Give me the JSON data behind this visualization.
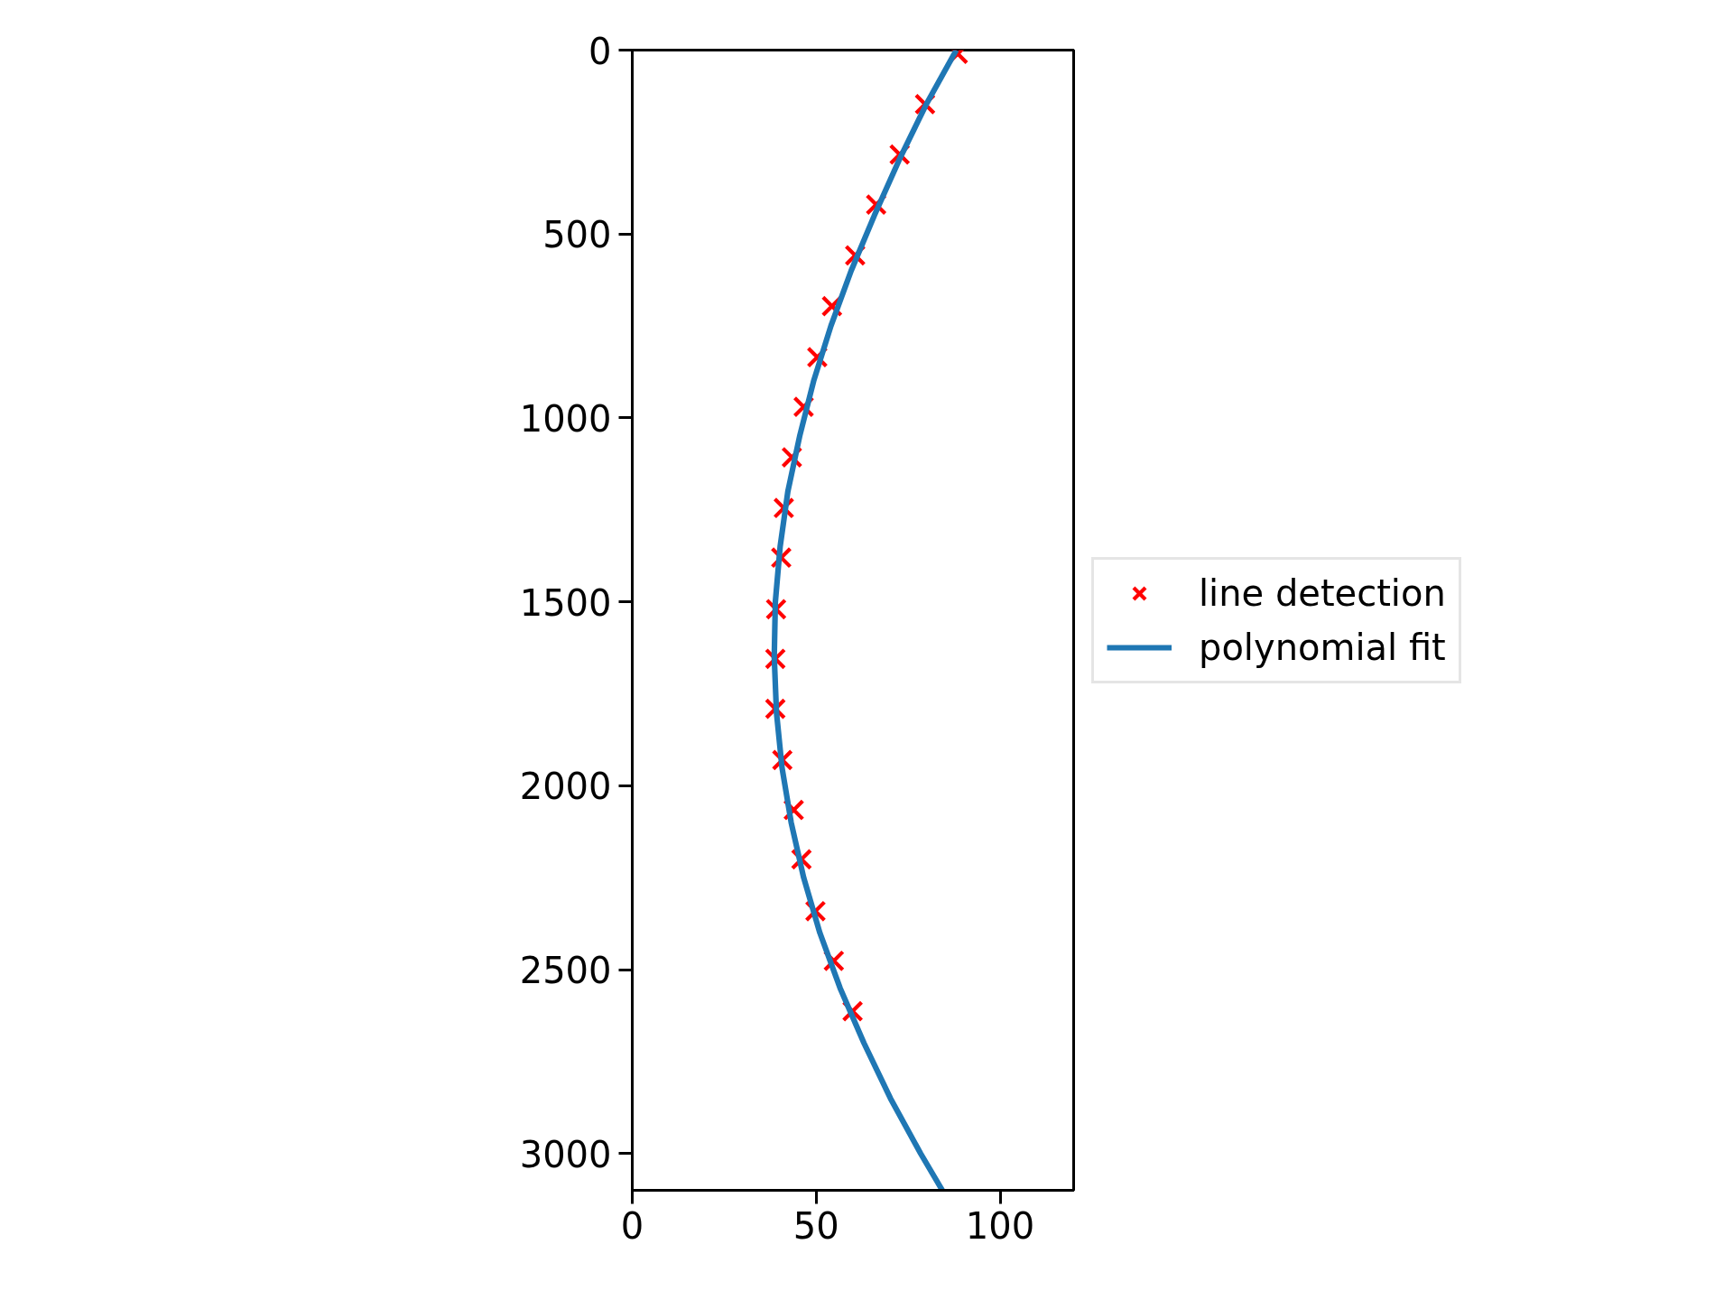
{
  "chart_data": {
    "type": "scatter",
    "xlim": [
      0,
      120
    ],
    "ylim": [
      3100,
      0
    ],
    "xticks": [
      0,
      50,
      100
    ],
    "yticks": [
      0,
      500,
      1000,
      1500,
      2000,
      2500,
      3000
    ],
    "grid": false,
    "legend": "right",
    "series": [
      {
        "name": "line detection",
        "marker": "cross",
        "color": "#ff0000",
        "x": [
          88.5,
          79.6,
          72.7,
          66.3,
          60.6,
          54.3,
          50.3,
          46.6,
          43.4,
          41.2,
          40.5,
          39.1,
          38.9,
          38.9,
          40.8,
          43.9,
          46.0,
          49.8,
          54.8,
          59.9
        ],
        "values": [
          10,
          147,
          284,
          420,
          558,
          696,
          835,
          970,
          1107,
          1245,
          1380,
          1520,
          1655,
          1791,
          1930,
          2066,
          2200,
          2341,
          2476,
          2613
        ]
      },
      {
        "name": "polynomial fit",
        "type": "line",
        "color": "#1f77b4",
        "x": [
          88.1,
          79.8,
          72.5,
          65.8,
          59.5,
          54.0,
          49.3,
          45.5,
          42.3,
          40.2,
          38.9,
          38.6,
          39.2,
          40.7,
          43.2,
          46.6,
          51.0,
          56.5,
          63.0,
          70.2,
          78.4,
          84.3
        ],
        "values": [
          0,
          150,
          300,
          450,
          600,
          750,
          900,
          1050,
          1200,
          1350,
          1500,
          1650,
          1800,
          1950,
          2100,
          2250,
          2400,
          2550,
          2700,
          2850,
          3000,
          3100
        ]
      }
    ]
  }
}
